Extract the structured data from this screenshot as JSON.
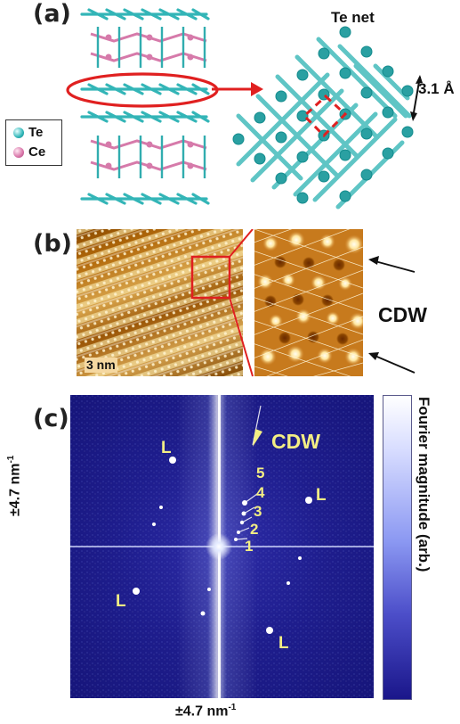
{
  "panels": {
    "a": {
      "label": "(a)",
      "te_net_label": "Te net",
      "spacing_label": "3.1 Å",
      "legend": [
        {
          "symbol": "Te",
          "color": "#33b5b7"
        },
        {
          "symbol": "Ce",
          "color": "#d67aaa"
        }
      ]
    },
    "b": {
      "label": "(b)",
      "scale_bar": "3 nm",
      "annotation": "CDW"
    },
    "c": {
      "label": "(c)",
      "cdw_label": "CDW",
      "peak_numbers": [
        "5",
        "4",
        "3",
        "2",
        "1"
      ],
      "lattice_peak_label": "L",
      "y_axis_label": "±4.7 nm",
      "y_axis_superscript": "-1",
      "x_axis_label": "±4.7 nm",
      "x_axis_superscript": "-1",
      "colorbar_label": "Fourier magnitude (arb.)"
    }
  },
  "colors": {
    "te_atom": "#33b5b7",
    "ce_atom": "#d67aaa",
    "highlight_red": "#e02020",
    "fft_background": "#1f1d8c",
    "fft_label": "#f3ee84",
    "stm_bright": "#fff1bf",
    "stm_dark": "#7a4000"
  }
}
